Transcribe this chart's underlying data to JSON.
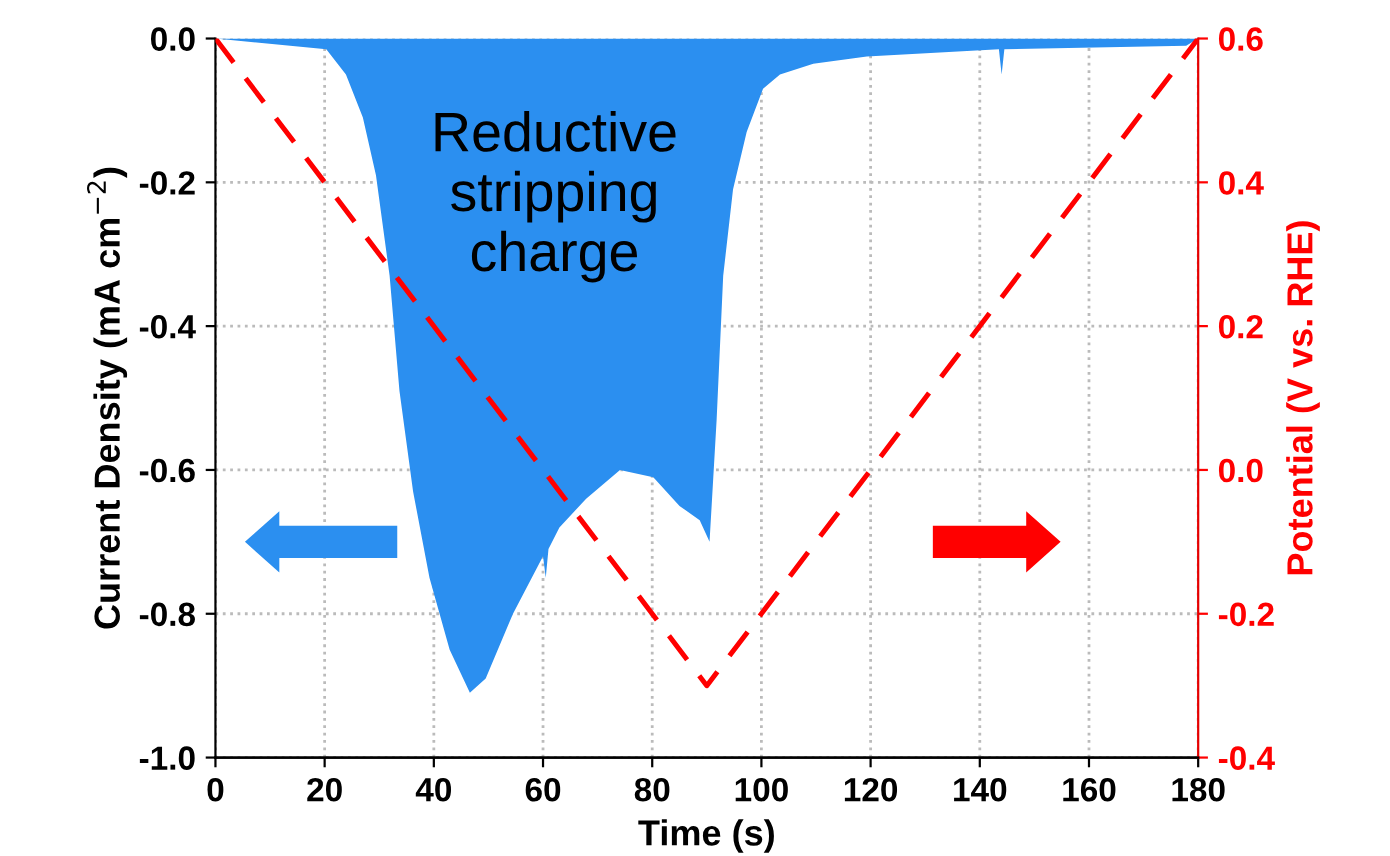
{
  "chart_data": {
    "type": "area",
    "xlabel": "Time (s)",
    "ylabel": "Current Density (mA cm$^{−2}$)",
    "y2label": "Potential (V vs. RHE)",
    "xlim": [
      0,
      180
    ],
    "xticks": [
      0,
      20,
      40,
      60,
      80,
      100,
      120,
      140,
      160,
      180
    ],
    "ylim": [
      -1.0,
      0.0
    ],
    "yticks": [
      {
        "value": -1.0,
        "label": "-1.0"
      },
      -0.8,
      -0.6,
      -0.4,
      -0.2,
      {
        "value": 0.0,
        "label": "0.0"
      }
    ],
    "y2lim": [
      -0.4,
      0.6
    ],
    "y2ticks": [
      -0.4,
      -0.2,
      {
        "value": 0.0,
        "label": "0.0"
      },
      0.2,
      0.4,
      0.6
    ],
    "grid": true,
    "legend": false,
    "annotations": [
      "Reductive\nstripping\ncharge"
    ],
    "series": [
      {
        "color": "#2b8ff0",
        "x": [
          0,
          20.3,
          23.9,
          27.0,
          29.4,
          31.9,
          33.7,
          36.2,
          39.2,
          42.9,
          46.6,
          49.5,
          54.5,
          60.0,
          60.5,
          61.0,
          63.0,
          67.9,
          74.1,
          80.2,
          85.0,
          88.7,
          90.5,
          91.8,
          93.0,
          94.8,
          97.3,
          100.3,
          103.4,
          109.5,
          119.3,
          143.5,
          144.0,
          144.5,
          177.8,
          180
        ],
        "values": [
          0,
          -0.015,
          -0.05,
          -0.11,
          -0.19,
          -0.33,
          -0.49,
          -0.63,
          -0.75,
          -0.85,
          -0.91,
          -0.89,
          -0.8,
          -0.72,
          -0.75,
          -0.71,
          -0.68,
          -0.64,
          -0.6,
          -0.61,
          -0.65,
          -0.67,
          -0.7,
          -0.53,
          -0.33,
          -0.21,
          -0.13,
          -0.07,
          -0.05,
          -0.035,
          -0.025,
          -0.015,
          -0.05,
          -0.015,
          -0.01,
          0
        ]
      },
      {
        "type": "line",
        "axis": "y2",
        "color": "#ff0000",
        "line_style": "dashed",
        "x": [
          0,
          90,
          180
        ],
        "values": [
          0.6,
          -0.3,
          0.6
        ]
      }
    ]
  }
}
